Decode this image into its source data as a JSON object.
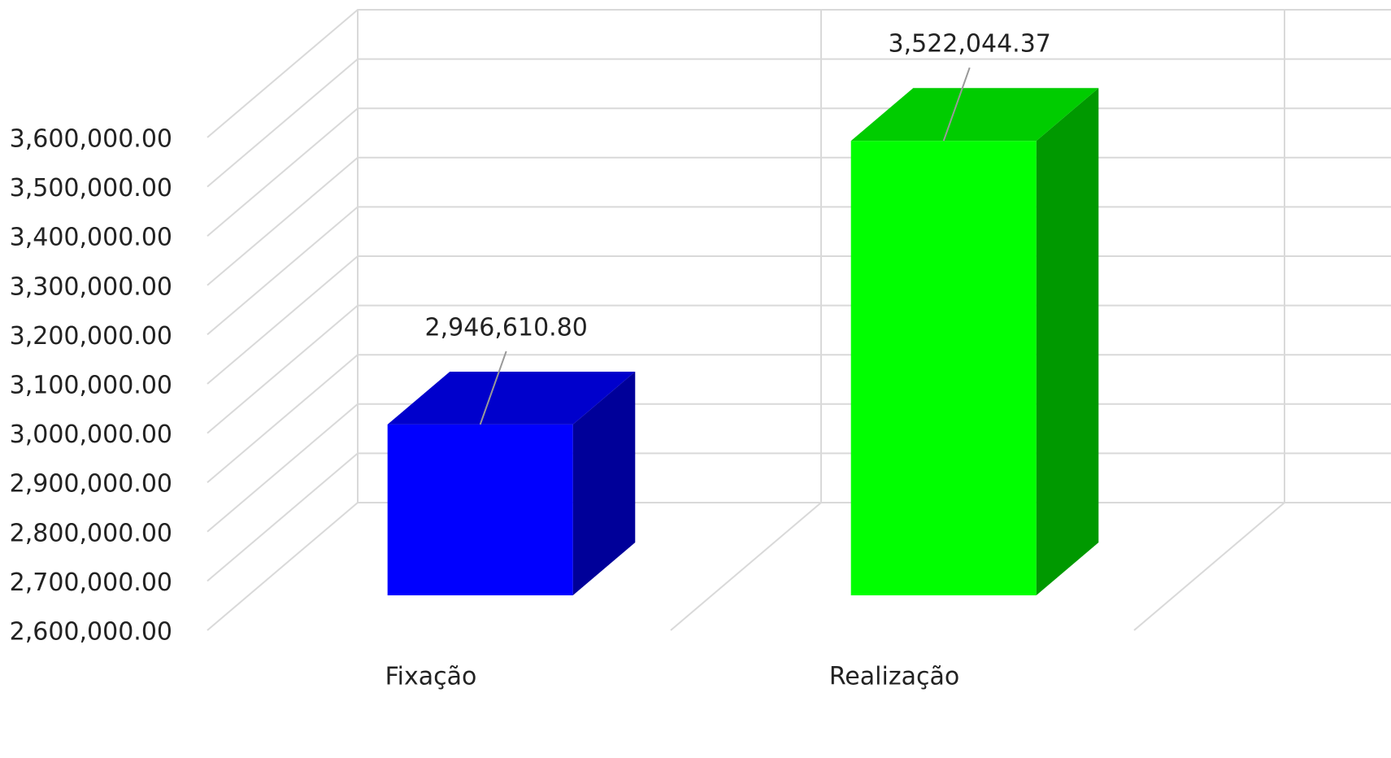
{
  "chart_data": {
    "type": "bar3d",
    "categories": [
      "Fixação",
      "Realização"
    ],
    "values": [
      2946610.8,
      3522044.37
    ],
    "value_labels": [
      "2,946,610.80",
      "3,522,044.37"
    ],
    "colors": [
      "#0000ff",
      "#00ff00"
    ],
    "ylim": [
      2600000,
      3600000
    ],
    "yticks": [
      {
        "value": 2600000,
        "label": "2,600,000.00"
      },
      {
        "value": 2700000,
        "label": "2,700,000.00"
      },
      {
        "value": 2800000,
        "label": "2,800,000.00"
      },
      {
        "value": 2900000,
        "label": "2,900,000.00"
      },
      {
        "value": 3000000,
        "label": "3,000,000.00"
      },
      {
        "value": 3100000,
        "label": "3,100,000.00"
      },
      {
        "value": 3200000,
        "label": "3,200,000.00"
      },
      {
        "value": 3300000,
        "label": "3,300,000.00"
      },
      {
        "value": 3400000,
        "label": "3,400,000.00"
      },
      {
        "value": 3500000,
        "label": "3,500,000.00"
      },
      {
        "value": 3600000,
        "label": "3,600,000.00"
      }
    ],
    "grid": true
  }
}
